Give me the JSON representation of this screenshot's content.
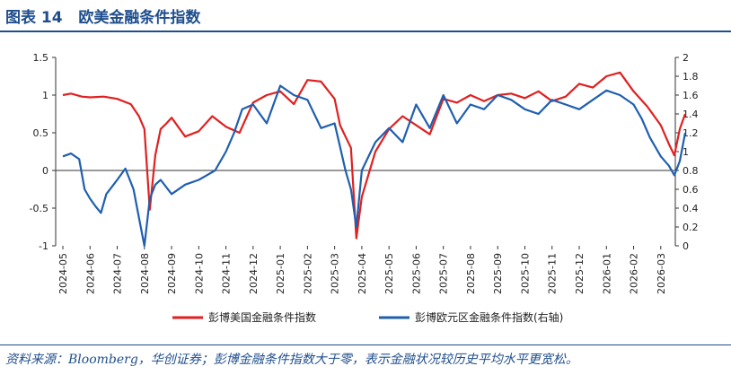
{
  "header": {
    "figure_label": "图表 14",
    "title": "欧美金融条件指数"
  },
  "source": "资料来源：Bloomberg，华创证券；彭博金融条件指数大于零，表示金融状况较历史平均水平更宽松。",
  "colors": {
    "us": "#e02020",
    "eu": "#1f5fae",
    "accent": "#1f4e8c"
  },
  "chart_data": {
    "type": "line",
    "x_ticks": [
      "2024-05",
      "2024-06",
      "2024-07",
      "2024-08",
      "2024-09",
      "2024-10",
      "2024-11",
      "2024-12",
      "2025-01",
      "2025-02",
      "2025-03",
      "2025-04",
      "2025-05",
      "2025-06",
      "2025-07",
      "2025-08",
      "2025-09",
      "2025-10",
      "2025-11",
      "2025-12",
      "2026-01",
      "2026-02",
      "2026-03"
    ],
    "y_left": {
      "ticks": [
        "1.5",
        "1",
        "0.5",
        "0",
        "-0.5",
        "-1"
      ],
      "ylim": [
        -1,
        1.5
      ]
    },
    "y_right": {
      "ticks": [
        "2",
        "1.8",
        "1.6",
        "1.4",
        "1.2",
        "1",
        "0.8",
        "0.6",
        "0.4",
        "0.2",
        "0"
      ],
      "ylim": [
        0,
        2
      ]
    },
    "series": [
      {
        "name": "彭博美国金融条件指数",
        "axis": "left",
        "color": "#e02020",
        "x": [
          0,
          0.3,
          0.7,
          1,
          1.5,
          2,
          2.5,
          2.8,
          3,
          3.2,
          3.4,
          3.6,
          3.8,
          4,
          4.5,
          5,
          5.5,
          6,
          6.5,
          7,
          7.5,
          8,
          8.5,
          9,
          9.5,
          10,
          10.2,
          10.4,
          10.6,
          10.8,
          11,
          11.5,
          12,
          12.5,
          13,
          13.5,
          14,
          14.5,
          15,
          15.5,
          16,
          16.5,
          17,
          17.5,
          18,
          18.5,
          19,
          19.5,
          20,
          20.5,
          21,
          21.5,
          22,
          22.3,
          22.5,
          22.7,
          22.9
        ],
        "y": [
          1.0,
          1.02,
          0.98,
          0.97,
          0.98,
          0.95,
          0.88,
          0.72,
          0.55,
          -0.52,
          0.2,
          0.55,
          0.62,
          0.7,
          0.45,
          0.52,
          0.72,
          0.58,
          0.5,
          0.9,
          1.0,
          1.05,
          0.88,
          1.2,
          1.18,
          0.95,
          0.6,
          0.45,
          0.3,
          -0.9,
          -0.35,
          0.25,
          0.55,
          0.72,
          0.6,
          0.48,
          0.95,
          0.9,
          1.0,
          0.92,
          1.0,
          1.02,
          0.96,
          1.05,
          0.92,
          0.98,
          1.15,
          1.1,
          1.25,
          1.3,
          1.05,
          0.85,
          0.6,
          0.35,
          0.2,
          0.55,
          0.75
        ]
      },
      {
        "name": "彭博欧元区金融条件指数(右轴)",
        "axis": "right",
        "color": "#1f5fae",
        "x": [
          0,
          0.3,
          0.6,
          0.8,
          1,
          1.2,
          1.4,
          1.6,
          2,
          2.3,
          2.6,
          2.8,
          3,
          3.2,
          3.4,
          3.6,
          4,
          4.5,
          5,
          5.3,
          5.6,
          6,
          6.3,
          6.6,
          7,
          7.5,
          8,
          8.5,
          9,
          9.5,
          10,
          10.2,
          10.4,
          10.6,
          10.8,
          11,
          11.5,
          12,
          12.5,
          13,
          13.5,
          14,
          14.5,
          15,
          15.5,
          16,
          16.5,
          17,
          17.5,
          18,
          18.5,
          19,
          19.5,
          20,
          20.5,
          21,
          21.3,
          21.6,
          22,
          22.3,
          22.5,
          22.7,
          22.9
        ],
        "y": [
          0.95,
          0.98,
          0.92,
          0.6,
          0.5,
          0.42,
          0.35,
          0.55,
          0.7,
          0.82,
          0.6,
          0.3,
          0.0,
          0.5,
          0.65,
          0.7,
          0.55,
          0.65,
          0.7,
          0.75,
          0.8,
          1.0,
          1.2,
          1.45,
          1.5,
          1.3,
          1.7,
          1.6,
          1.55,
          1.25,
          1.3,
          1.05,
          0.8,
          0.6,
          0.2,
          0.8,
          1.1,
          1.25,
          1.1,
          1.5,
          1.25,
          1.6,
          1.3,
          1.5,
          1.45,
          1.6,
          1.55,
          1.45,
          1.4,
          1.55,
          1.5,
          1.45,
          1.55,
          1.65,
          1.6,
          1.5,
          1.35,
          1.15,
          0.95,
          0.85,
          0.75,
          0.9,
          1.2
        ]
      }
    ]
  }
}
